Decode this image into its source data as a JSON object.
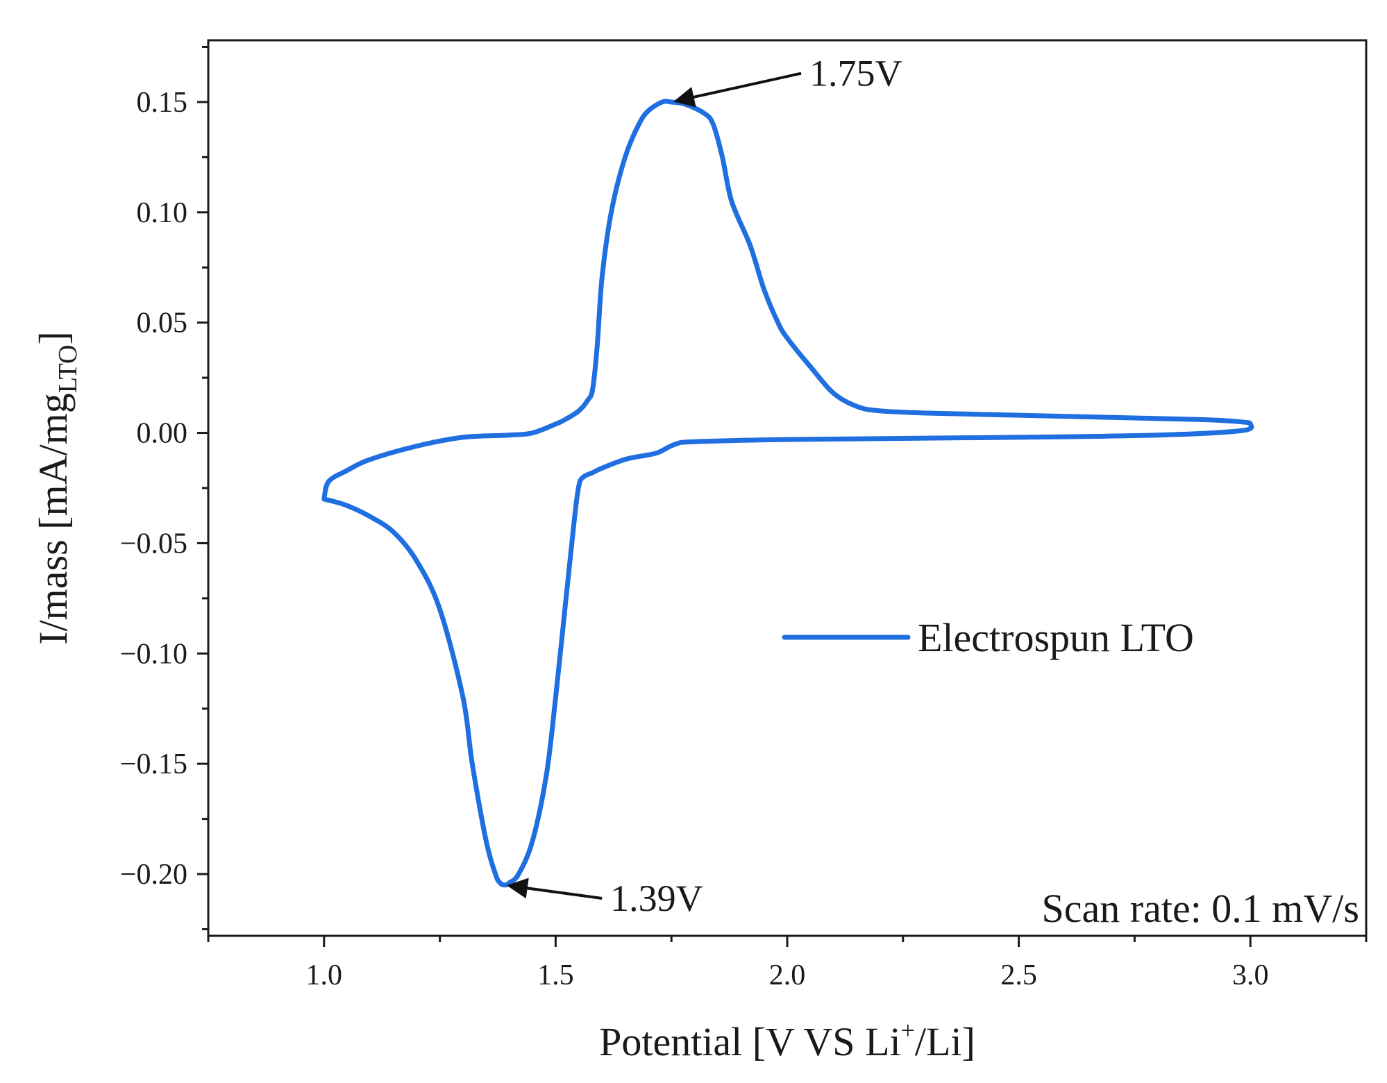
{
  "chart_data": {
    "type": "line",
    "title": "",
    "xlabel": {
      "prefix": "Potential [V VS Li",
      "sup": "+",
      "suffix": "/Li]"
    },
    "ylabel": {
      "prefix": "I/mass [mA/mg",
      "sub": "LTO",
      "suffix": "]"
    },
    "xlim": [
      0.75,
      3.25
    ],
    "ylim": [
      -0.228,
      0.178
    ],
    "xticks": [
      1.0,
      1.5,
      2.0,
      2.5,
      3.0
    ],
    "xtick_labels": [
      "1.0",
      "1.5",
      "2.0",
      "2.5",
      "3.0"
    ],
    "yticks": [
      0.15,
      0.1,
      0.05,
      0.0,
      -0.05,
      -0.1,
      -0.15,
      -0.2
    ],
    "ytick_labels": [
      "0.15",
      "0.10",
      "0.05",
      "0.00",
      "−0.05",
      "−0.10",
      "−0.15",
      "−0.20"
    ],
    "grid": false,
    "legend_position": "center-right",
    "series": [
      {
        "name": "Electrospun LTO",
        "color": "#1f6fe0",
        "x": [
          1.0,
          1.01,
          1.05,
          1.1,
          1.2,
          1.3,
          1.4,
          1.45,
          1.5,
          1.52,
          1.55,
          1.57,
          1.58,
          1.59,
          1.6,
          1.62,
          1.65,
          1.68,
          1.7,
          1.73,
          1.75,
          1.78,
          1.82,
          1.84,
          1.86,
          1.88,
          1.92,
          1.95,
          1.98,
          2.0,
          2.05,
          2.1,
          2.15,
          2.2,
          2.3,
          2.5,
          2.7,
          2.9,
          2.98,
          3.0,
          2.98,
          2.8,
          2.5,
          2.0,
          1.8,
          1.76,
          1.73,
          1.72,
          1.7,
          1.65,
          1.6,
          1.58,
          1.56,
          1.55,
          1.54,
          1.52,
          1.5,
          1.48,
          1.45,
          1.42,
          1.4,
          1.39,
          1.38,
          1.37,
          1.35,
          1.32,
          1.3,
          1.25,
          1.2,
          1.15,
          1.1,
          1.05,
          1.02,
          1.0
        ],
        "y": [
          -0.03,
          -0.022,
          -0.017,
          -0.012,
          -0.006,
          -0.002,
          -0.001,
          0.0,
          0.004,
          0.006,
          0.01,
          0.015,
          0.02,
          0.04,
          0.07,
          0.1,
          0.125,
          0.14,
          0.146,
          0.15,
          0.15,
          0.149,
          0.145,
          0.14,
          0.125,
          0.105,
          0.085,
          0.065,
          0.05,
          0.043,
          0.03,
          0.018,
          0.012,
          0.01,
          0.009,
          0.008,
          0.007,
          0.006,
          0.005,
          0.004,
          0.001,
          -0.001,
          -0.002,
          -0.003,
          -0.004,
          -0.005,
          -0.008,
          -0.009,
          -0.01,
          -0.012,
          -0.016,
          -0.018,
          -0.02,
          -0.024,
          -0.04,
          -0.08,
          -0.12,
          -0.155,
          -0.185,
          -0.2,
          -0.204,
          -0.205,
          -0.204,
          -0.2,
          -0.185,
          -0.15,
          -0.12,
          -0.08,
          -0.058,
          -0.045,
          -0.038,
          -0.033,
          -0.031,
          -0.03
        ]
      }
    ],
    "annotations": [
      {
        "text": "1.75V",
        "point": [
          1.75,
          0.15
        ],
        "from": [
          2.03,
          0.163
        ]
      },
      {
        "text": "1.39V",
        "point": [
          1.39,
          -0.205
        ],
        "from": [
          1.6,
          -0.211
        ]
      }
    ],
    "note": "Scan rate: 0.1 mV/s"
  }
}
